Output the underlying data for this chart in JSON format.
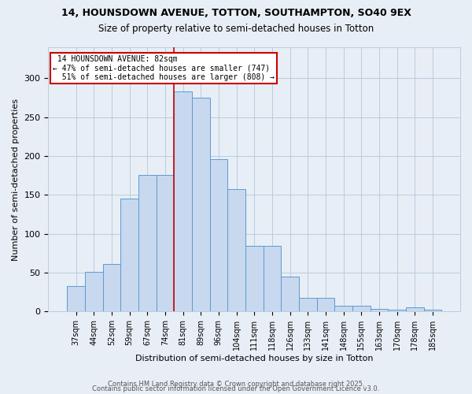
{
  "title1": "14, HOUNSDOWN AVENUE, TOTTON, SOUTHAMPTON, SO40 9EX",
  "title2": "Size of property relative to semi-detached houses in Totton",
  "xlabel": "Distribution of semi-detached houses by size in Totton",
  "ylabel": "Number of semi-detached properties",
  "categories": [
    "37sqm",
    "44sqm",
    "52sqm",
    "59sqm",
    "67sqm",
    "74sqm",
    "81sqm",
    "89sqm",
    "96sqm",
    "104sqm",
    "111sqm",
    "118sqm",
    "126sqm",
    "133sqm",
    "141sqm",
    "148sqm",
    "155sqm",
    "163sqm",
    "170sqm",
    "178sqm",
    "185sqm"
  ],
  "values": [
    33,
    51,
    61,
    145,
    176,
    176,
    283,
    275,
    196,
    157,
    84,
    84,
    45,
    18,
    18,
    7,
    7,
    3,
    2,
    5,
    2
  ],
  "bar_color": "#c8d8ee",
  "bar_edge_color": "#5b9bd5",
  "property_line_index": 6,
  "property_label": "14 HOUNSDOWN AVENUE: 82sqm",
  "pct_smaller": 47,
  "pct_smaller_count": 747,
  "pct_larger": 51,
  "pct_larger_count": 808,
  "annotation_box_color": "#ffffff",
  "annotation_box_edge": "#cc0000",
  "line_color": "#cc0000",
  "grid_color": "#b8cce0",
  "bg_color": "#e8eef5",
  "footer_line1": "Contains HM Land Registry data © Crown copyright and database right 2025.",
  "footer_line2": "Contains public sector information licensed under the Open Government Licence v3.0.",
  "ylim": [
    0,
    340
  ],
  "yticks": [
    0,
    50,
    100,
    150,
    200,
    250,
    300
  ]
}
